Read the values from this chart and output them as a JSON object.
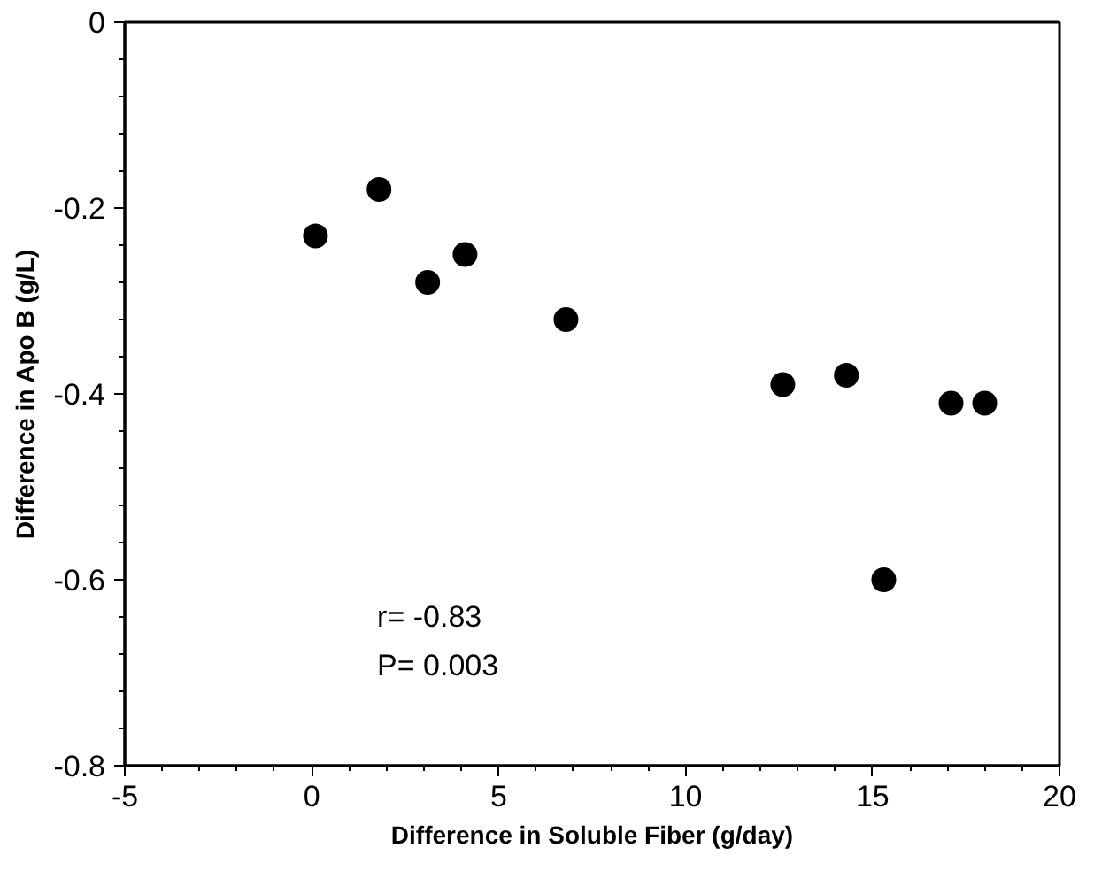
{
  "chart_data": {
    "type": "scatter",
    "xlabel": "Difference in Soluble Fiber (g/day)",
    "ylabel": "Difference in Apo B (g/L)",
    "x": [
      0.1,
      1.8,
      3.1,
      4.1,
      6.8,
      12.6,
      14.3,
      15.3,
      17.1,
      18.0
    ],
    "series": [
      {
        "color": "#000000",
        "values": [
          -0.23,
          -0.18,
          -0.28,
          -0.25,
          -0.32,
          -0.39,
          -0.38,
          -0.6,
          -0.41,
          -0.41
        ]
      }
    ],
    "xlim": [
      -5,
      20
    ],
    "ylim": [
      -0.8,
      0
    ],
    "xticks": [
      -5,
      0,
      5,
      10,
      15,
      20
    ],
    "yticks": [
      -0.8,
      -0.6,
      -0.4,
      -0.2,
      0
    ],
    "marker": "circle",
    "grid": false,
    "annotations": [
      "r= -0.83",
      "P= 0.003"
    ]
  }
}
